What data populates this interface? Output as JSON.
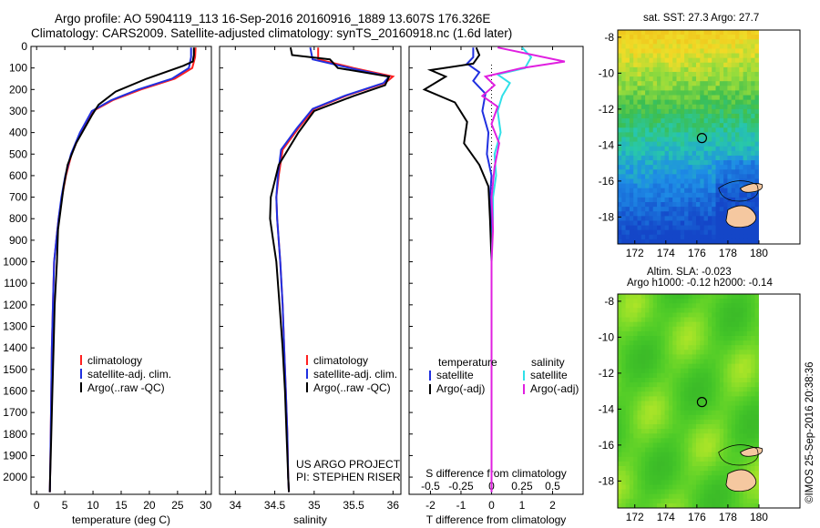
{
  "title_line1": "Argo profile: AO 5904119_113 16-Sep-2016 20160916_1889 13.607S 176.326E",
  "title_line2": "Climatology: CARS2009. Satellite-adjusted climatology: synTS_20160918.nc (1.6d later)",
  "sst_title": "sat. SST: 27.3 Argo: 27.7",
  "sla_title1": "Altim. SLA: -0.023",
  "sla_title2": "Argo h1000: -0.12 h2000: -0.14",
  "timestamp": "©IMOS 25-Sep-2016 20:38:36",
  "colors": {
    "climatology": "#ff2020",
    "satellite": "#2030e0",
    "argo": "#000000",
    "sat_sal": "#30e0e8",
    "argo_sal": "#e020e0",
    "land": "#f5c8a0"
  },
  "chart_data": [
    {
      "type": "line",
      "xlabel": "temperature (deg C)",
      "ylabel": "",
      "xlim": [
        -1,
        31
      ],
      "ylim": [
        2080,
        0
      ],
      "xticks": [
        "0",
        "5",
        "10",
        "15",
        "20",
        "25",
        "30"
      ],
      "yticks": [
        "0",
        "100",
        "200",
        "300",
        "400",
        "500",
        "600",
        "700",
        "800",
        "900",
        "1000",
        "1100",
        "1200",
        "1300",
        "1400",
        "1500",
        "1600",
        "1700",
        "1800",
        "1900",
        "2000"
      ],
      "legend": [
        "climatology",
        "satellite-adj. clim.",
        "Argo(..raw -QC)"
      ],
      "series": [
        {
          "name": "climatology",
          "x": [
            28.2,
            28.1,
            27.6,
            24.5,
            18.5,
            13.5,
            10.0,
            7.8,
            6.2,
            5.2,
            4.5,
            3.9,
            3.5,
            3.1,
            2.9,
            2.7,
            2.6,
            2.5,
            2.4,
            2.35
          ],
          "y": [
            5,
            50,
            100,
            150,
            200,
            250,
            300,
            400,
            500,
            600,
            700,
            800,
            900,
            1000,
            1200,
            1400,
            1600,
            1800,
            2000,
            2070
          ]
        },
        {
          "name": "satellite-adj. clim.",
          "x": [
            27.4,
            27.4,
            27.0,
            24.0,
            18.0,
            13.2,
            9.8,
            7.7,
            6.1,
            5.1,
            4.4,
            3.9,
            3.5,
            3.1,
            2.9,
            2.7,
            2.6,
            2.5,
            2.4,
            2.35
          ],
          "y": [
            5,
            50,
            100,
            150,
            200,
            250,
            300,
            400,
            500,
            600,
            700,
            800,
            900,
            1000,
            1200,
            1400,
            1600,
            1800,
            2000,
            2070
          ]
        },
        {
          "name": "Argo(..raw -QC)",
          "x": [
            27.9,
            27.9,
            27.7,
            26.0,
            19.5,
            14.0,
            11.0,
            9.8,
            7.0,
            5.5,
            4.8,
            4.3,
            3.8,
            3.6,
            3.2,
            3.0,
            2.8,
            2.6,
            2.5,
            2.4,
            2.35
          ],
          "y": [
            5,
            40,
            70,
            90,
            150,
            210,
            270,
            320,
            450,
            550,
            650,
            750,
            850,
            1000,
            1200,
            1400,
            1600,
            1800,
            1900,
            2000,
            2070
          ]
        }
      ]
    },
    {
      "type": "line",
      "xlabel": "salinity",
      "ylabel": "",
      "xlim": [
        33.8,
        36.1
      ],
      "ylim": [
        2080,
        0
      ],
      "xticks": [
        "34",
        "34.5",
        "35",
        "35.5",
        "36"
      ],
      "legend": [
        "climatology",
        "satellite-adj. clim.",
        "Argo(..raw -QC)"
      ],
      "annotation": [
        "US ARGO PROJECT",
        "PI: STEPHEN RISER"
      ],
      "series": [
        {
          "name": "climatology",
          "x": [
            35.05,
            35.05,
            35.5,
            36.0,
            35.9,
            35.4,
            35.0,
            34.8,
            34.6,
            34.55,
            34.52,
            34.53,
            34.55,
            34.57,
            34.6,
            34.62,
            34.64,
            34.66,
            34.67,
            34.68
          ],
          "y": [
            5,
            60,
            100,
            140,
            170,
            230,
            290,
            380,
            480,
            600,
            700,
            800,
            900,
            1000,
            1200,
            1400,
            1600,
            1800,
            2000,
            2070
          ]
        },
        {
          "name": "satellite-adj. clim.",
          "x": [
            34.95,
            34.98,
            35.45,
            35.95,
            35.88,
            35.38,
            34.98,
            34.78,
            34.58,
            34.54,
            34.52,
            34.53,
            34.55,
            34.57,
            34.6,
            34.62,
            34.64,
            34.66,
            34.67,
            34.68
          ],
          "y": [
            5,
            60,
            100,
            140,
            170,
            230,
            290,
            380,
            480,
            600,
            700,
            800,
            900,
            1000,
            1200,
            1400,
            1600,
            1800,
            2000,
            2070
          ]
        },
        {
          "name": "Argo(..raw -QC)",
          "x": [
            34.7,
            34.72,
            35.2,
            35.3,
            35.95,
            35.9,
            35.5,
            35.0,
            34.8,
            34.55,
            34.45,
            34.44,
            34.48,
            34.52,
            34.56,
            34.6,
            34.63,
            34.65,
            34.67,
            34.68
          ],
          "y": [
            5,
            40,
            60,
            100,
            140,
            180,
            230,
            300,
            400,
            550,
            700,
            800,
            900,
            1000,
            1200,
            1400,
            1600,
            1800,
            2000,
            2070
          ]
        }
      ]
    },
    {
      "type": "line",
      "xlabel": "T difference from climatology",
      "xlabel_top": "S difference from climatology",
      "xlim": [
        -2.7,
        3.0
      ],
      "ylim": [
        2080,
        0
      ],
      "xticks": [
        "-2",
        "-1",
        "0",
        "1",
        "2"
      ],
      "xticks_top": [
        "-0.5",
        "-0.25",
        "0",
        "0.25",
        "0.5"
      ],
      "legend_left_title": "temperature",
      "legend_right_title": "salinity",
      "legend_left": [
        "satellite",
        "Argo(-adj)"
      ],
      "legend_right": [
        "satellite",
        "Argo(-adj)"
      ],
      "series": [
        {
          "name": "temperature satellite",
          "x": [
            -0.6,
            -0.6,
            -0.8,
            -0.4,
            -0.6,
            -0.2,
            -0.3,
            -0.1,
            -0.15,
            0,
            -0.05,
            0,
            0,
            0,
            0,
            0,
            0
          ],
          "y": [
            5,
            50,
            80,
            120,
            160,
            220,
            300,
            400,
            500,
            600,
            700,
            800,
            1000,
            1200,
            1500,
            1800,
            2070
          ]
        },
        {
          "name": "temperature Argo(-adj)",
          "x": [
            -0.5,
            -0.4,
            -0.6,
            -2.0,
            -1.5,
            -2.2,
            -1.2,
            -0.8,
            -0.9,
            -0.4,
            -0.1,
            -0.05,
            0,
            0,
            0,
            0,
            0
          ],
          "y": [
            5,
            40,
            80,
            110,
            140,
            200,
            260,
            350,
            450,
            550,
            650,
            800,
            1000,
            1200,
            1500,
            1800,
            2070
          ]
        },
        {
          "name": "salinity satellite",
          "x": [
            1.0,
            1.3,
            1.1,
            0.2,
            0.6,
            0.35,
            0.2,
            0.3,
            0.1,
            0.15,
            0.05,
            0.05,
            0,
            0,
            0,
            0
          ],
          "y": [
            5,
            50,
            100,
            130,
            170,
            230,
            300,
            400,
            500,
            600,
            700,
            800,
            1000,
            1300,
            1700,
            2070
          ]
        },
        {
          "name": "salinity Argo(-adj)",
          "x": [
            0.2,
            2.4,
            1.0,
            -0.2,
            0.1,
            -0.3,
            0.2,
            0.0,
            0.25,
            0.1,
            0.0,
            0.05,
            0,
            0,
            0
          ],
          "y": [
            5,
            70,
            100,
            140,
            180,
            230,
            280,
            360,
            450,
            560,
            700,
            850,
            1000,
            1500,
            2070
          ]
        }
      ]
    }
  ],
  "sst_map": {
    "title": "sat. SST: 27.3 Argo: 27.7",
    "xticks": [
      "172",
      "174",
      "176",
      "178",
      "180"
    ],
    "yticks": [
      "-8",
      "-10",
      "-12",
      "-14",
      "-16",
      "-18"
    ],
    "argo_lon": 176.326,
    "argo_lat": -13.607
  },
  "sla_map": {
    "xticks": [
      "172",
      "174",
      "176",
      "178",
      "180"
    ],
    "yticks": [
      "-8",
      "-10",
      "-12",
      "-14",
      "-16",
      "-18"
    ],
    "argo_lon": 176.326,
    "argo_lat": -13.607
  }
}
